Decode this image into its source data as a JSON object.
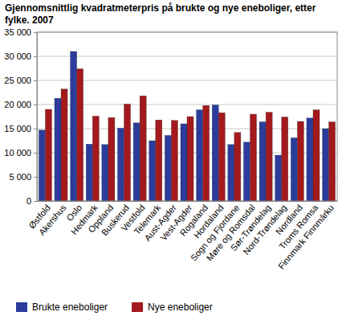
{
  "chart_data": {
    "type": "bar",
    "title": "Gjennomsnittlig kvadratmeterpris på brukte og nye eneboliger, etter fylke. 2007",
    "categories": [
      "Østfold",
      "Akershus",
      "Oslo",
      "Hedmark",
      "Oppland",
      "Buskerud",
      "Vestfold",
      "Telemark",
      "Aust-Agder",
      "Vest-Agder",
      "Rogaland",
      "Hordaland",
      "Sogn og Fjordane",
      "Møre og Romsdal",
      "Sør-Trøndelag",
      "Nord-Trøndelag",
      "Nordland",
      "Troms Romsa",
      "Finnmark Finnmárku"
    ],
    "series": [
      {
        "name": "Brukte eneboliger",
        "color": "#2b3c9b",
        "values": [
          14700,
          21300,
          31000,
          11800,
          11700,
          15100,
          16200,
          12500,
          13600,
          16000,
          18900,
          19900,
          11700,
          12200,
          16400,
          9500,
          13100,
          17200,
          15000
        ]
      },
      {
        "name": "Nye eneboliger",
        "color": "#a3191c",
        "values": [
          19000,
          23200,
          27400,
          17600,
          17300,
          20100,
          21800,
          16800,
          16700,
          17500,
          19800,
          18300,
          14200,
          18000,
          18400,
          17400,
          16500,
          18900,
          16400
        ]
      }
    ],
    "ylim": [
      0,
      35000
    ],
    "yticks": [
      0,
      {
        "value": 5000,
        "label": "5 000"
      },
      {
        "value": 10000,
        "label": "10 000"
      },
      {
        "value": 15000,
        "label": "15 000"
      },
      {
        "value": 20000,
        "label": "20 000"
      },
      {
        "value": 25000,
        "label": "25 000"
      },
      {
        "value": 30000,
        "label": "30 000"
      },
      {
        "value": 35000,
        "label": "35 000"
      }
    ],
    "grid": true,
    "legend": "bottom"
  }
}
